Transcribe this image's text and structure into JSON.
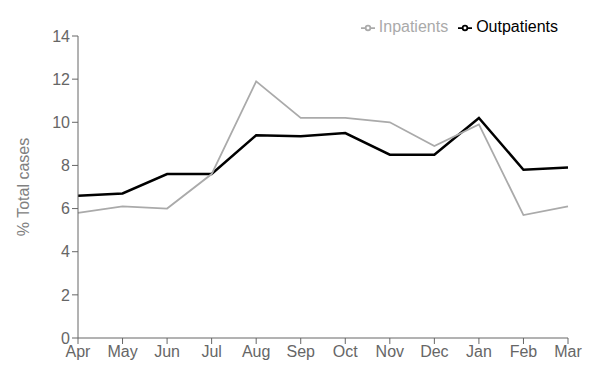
{
  "chart_data": {
    "type": "line",
    "categories": [
      "Apr",
      "May",
      "Jun",
      "Jul",
      "Aug",
      "Sep",
      "Oct",
      "Nov",
      "Dec",
      "Jan",
      "Feb",
      "Mar"
    ],
    "series": [
      {
        "name": "Outpatients",
        "color": "#000000",
        "values": [
          6.6,
          6.7,
          7.6,
          7.6,
          9.4,
          9.35,
          9.5,
          8.5,
          8.5,
          10.2,
          7.8,
          7.9
        ]
      },
      {
        "name": "Inpatients",
        "color": "#aaaaaa",
        "values": [
          5.8,
          6.1,
          6.0,
          7.6,
          11.9,
          10.2,
          10.2,
          10.0,
          8.9,
          9.9,
          5.7,
          6.1
        ]
      }
    ],
    "ylabel": "% Total cases",
    "ylim": [
      0,
      14
    ],
    "yticks": [
      0,
      2,
      4,
      6,
      8,
      10,
      12,
      14
    ],
    "grid": false,
    "legend": "upper right"
  }
}
